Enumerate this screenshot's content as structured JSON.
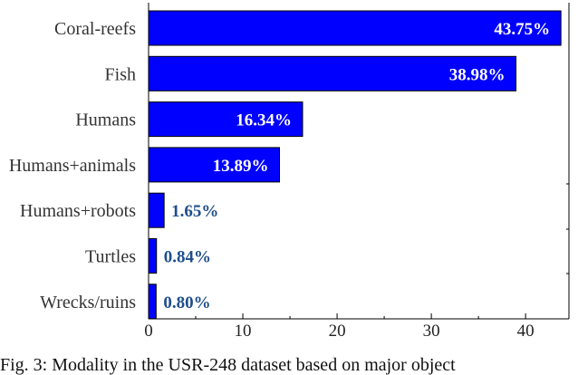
{
  "chart_data": {
    "type": "bar",
    "orientation": "horizontal",
    "categories": [
      "Coral-reefs",
      "Fish",
      "Humans",
      "Humans+animals",
      "Humans+robots",
      "Turtles",
      "Wrecks/ruins"
    ],
    "values": [
      43.75,
      38.98,
      16.34,
      13.89,
      1.65,
      0.84,
      0.8
    ],
    "value_labels": [
      "43.75%",
      "38.98%",
      "16.34%",
      "13.89%",
      "1.65%",
      "0.84%",
      "0.80%"
    ],
    "xticks": [
      "0",
      "10",
      "20",
      "30",
      "40"
    ],
    "xlim": [
      0,
      44.6
    ],
    "grid": false,
    "colors": {
      "bar": "#0000ff",
      "bar_edge": "#000000",
      "label_inside": "#ffffff",
      "label_outside": "#1f4e8c"
    }
  },
  "caption": "Fig. 3: Modality in the USR-248 dataset based on major object"
}
